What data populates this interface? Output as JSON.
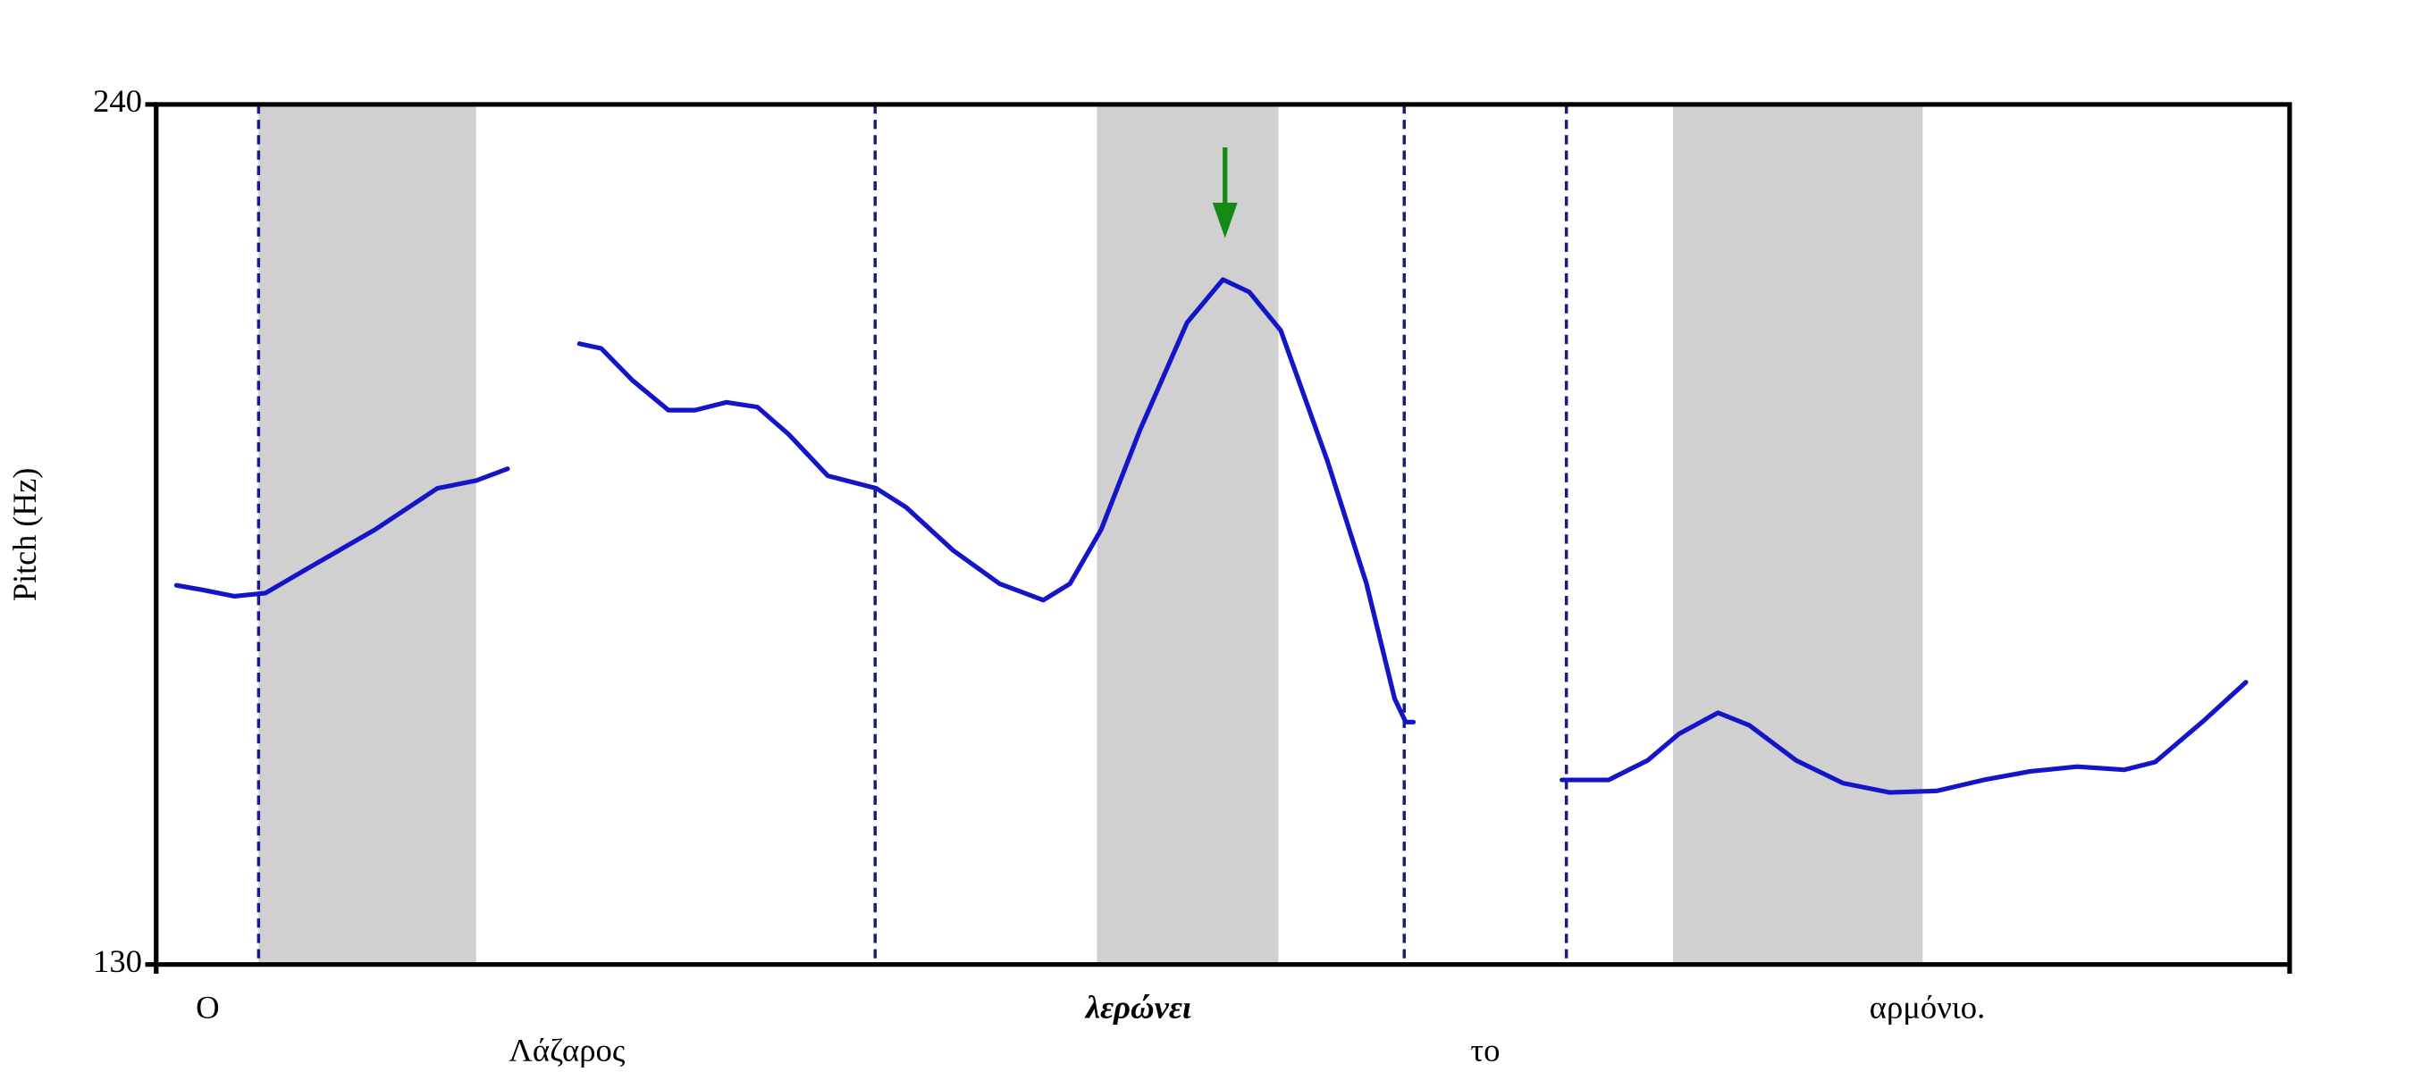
{
  "chart_data": {
    "type": "line",
    "y_label": "Pitch (Hz)",
    "ylim": [
      130,
      240
    ],
    "yticks": [
      130,
      240
    ],
    "xlim": [
      0,
      100
    ],
    "x": [
      0.95,
      2.2,
      3.66,
      5.12,
      7.32,
      10.25,
      13.18,
      15.01,
      16.47,
      null,
      19.84,
      20.86,
      22.33,
      24.01,
      25.26,
      26.72,
      28.18,
      29.65,
      31.48,
      33.75,
      35.14,
      37.34,
      39.53,
      41.58,
      42.83,
      44.29,
      46.12,
      48.32,
      50.0,
      51.24,
      52.71,
      54.9,
      56.73,
      58.05,
      58.57,
      58.93,
      null,
      65.89,
      68.08,
      69.91,
      71.38,
      73.21,
      74.67,
      76.87,
      79.06,
      81.26,
      83.46,
      85.65,
      87.85,
      90.04,
      92.24,
      93.7,
      95.9,
      97.95
    ],
    "series": [
      {
        "color": "#1414c8",
        "values": [
          178.5,
          177.9,
          177.1,
          177.5,
          181.0,
          185.6,
          190.9,
          191.9,
          193.4,
          null,
          209.4,
          208.8,
          204.7,
          200.9,
          200.9,
          201.9,
          201.3,
          197.8,
          192.5,
          190.9,
          188.5,
          183.0,
          178.7,
          176.6,
          178.7,
          185.6,
          198.4,
          212.1,
          217.6,
          216.0,
          211.1,
          194.4,
          178.7,
          164.0,
          161.0,
          161.0,
          null,
          153.6,
          153.6,
          156.1,
          159.5,
          162.2,
          160.6,
          156.1,
          153.2,
          152.0,
          152.2,
          153.6,
          154.7,
          155.3,
          154.9,
          155.9,
          161.0,
          166.1
        ]
      }
    ],
    "shaded_regions": [
      [
        4.8,
        15.0
      ],
      [
        44.1,
        52.6
      ],
      [
        71.1,
        82.8
      ]
    ],
    "shade_color": "#d0d0d0",
    "boundaries": [
      4.8,
      33.7,
      58.5,
      66.1
    ],
    "boundary_color": "#1a1a8c",
    "arrow": {
      "x": 50.1,
      "color": "#138a13"
    },
    "words": [
      "Ο",
      "Λάζαρος",
      "λερώνει",
      "το",
      "αρμόνιο."
    ],
    "emphasized_word": 2
  }
}
